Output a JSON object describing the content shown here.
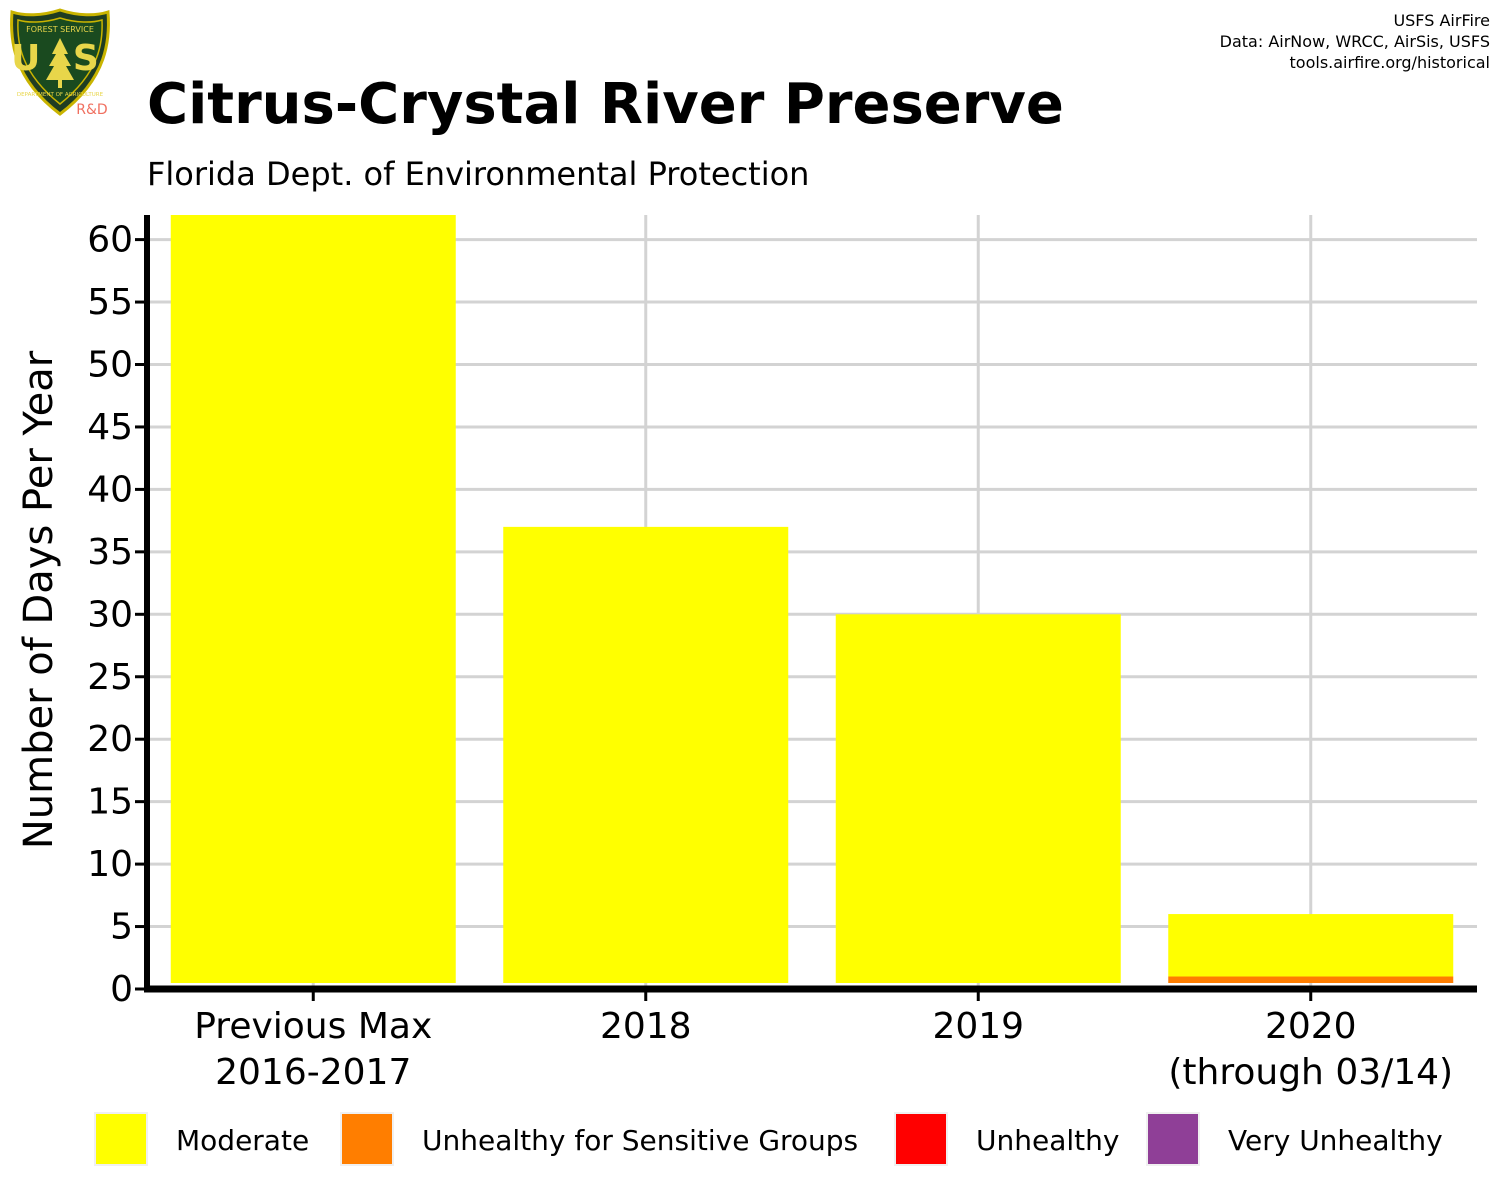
{
  "header": {
    "title": "Citrus-Crystal River Preserve",
    "subtitle": "Florida Dept. of Environmental Protection",
    "credits": [
      "USFS AirFire",
      "Data: AirNow, WRCC, AirSis, USFS",
      "tools.airfire.org/historical"
    ]
  },
  "logo": {
    "top_text": "FOREST SERVICE",
    "letters": "U S",
    "bottom_text": "DEPARTMENT OF AGRICULTURE",
    "badge": "R&D"
  },
  "chart_data": {
    "type": "bar",
    "stacked": true,
    "title": "Citrus-Crystal River Preserve",
    "subtitle": "Florida Dept. of Environmental Protection",
    "xlabel": "",
    "ylabel": "Number of Days Per Year",
    "categories": [
      [
        "Previous Max",
        "2016-2017"
      ],
      [
        "2018"
      ],
      [
        "2019"
      ],
      [
        "2020",
        "(through 03/14)"
      ]
    ],
    "series": [
      {
        "name": "Unhealthy for Sensitive Groups",
        "color": "#FF7E00",
        "values": [
          0,
          0,
          0,
          1
        ]
      },
      {
        "name": "Moderate",
        "color": "#FFFF00",
        "values": [
          62,
          37,
          30,
          5
        ]
      }
    ],
    "ylim": [
      0,
      62
    ],
    "yticks": [
      0,
      5,
      10,
      15,
      20,
      25,
      30,
      35,
      40,
      45,
      50,
      55,
      60
    ],
    "grid": true,
    "legend_position": "bottom"
  },
  "legend": [
    {
      "label": "Moderate",
      "color": "#FFFF00"
    },
    {
      "label": "Unhealthy for Sensitive Groups",
      "color": "#FF7E00"
    },
    {
      "label": "Unhealthy",
      "color": "#FF0000"
    },
    {
      "label": "Very Unhealthy",
      "color": "#8F3F97"
    }
  ]
}
